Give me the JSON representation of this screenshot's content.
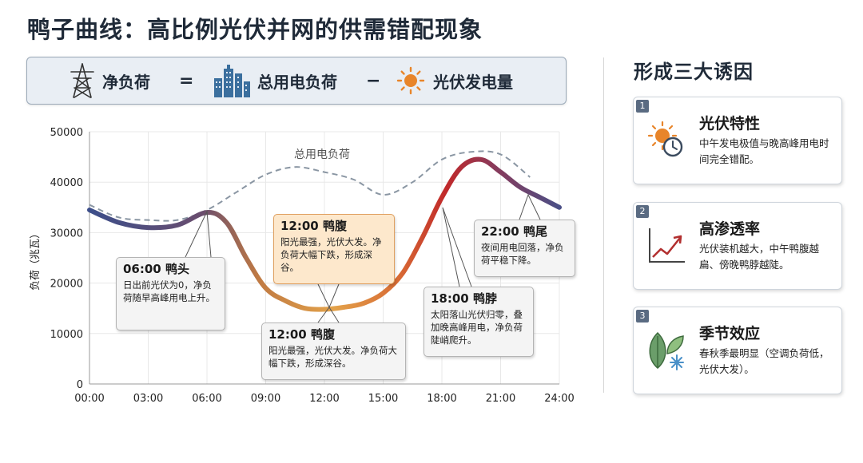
{
  "title": "鸭子曲线：高比例光伏并网的供需错配现象",
  "formula": {
    "net_load": "净负荷",
    "equals": "=",
    "total_load": "总用电负荷",
    "minus": "−",
    "pv_gen": "光伏发电量",
    "icons": [
      "transmission-tower-icon",
      "buildings-icon",
      "sun-icon"
    ]
  },
  "chart_data": {
    "type": "line",
    "ylabel": "负荷（兆瓦）",
    "xlabel": "",
    "x_ticks": [
      "00:00",
      "03:00",
      "06:00",
      "09:00",
      "12:00",
      "15:00",
      "18:00",
      "21:00",
      "24:00"
    ],
    "y_ticks": [
      "0",
      "10000",
      "20000",
      "30000",
      "40000",
      "50000"
    ],
    "ylim": [
      0,
      50000
    ],
    "xlim": [
      0,
      24
    ],
    "series": [
      {
        "name": "总用电负荷",
        "style": "dashed",
        "x": [
          0,
          1.5,
          3,
          4.5,
          6,
          7.5,
          9,
          10.5,
          12,
          13.5,
          15,
          16.5,
          18,
          19.5,
          21,
          22.5
        ],
        "y": [
          35500,
          33000,
          32500,
          32500,
          34500,
          38000,
          41500,
          43000,
          42000,
          40500,
          37500,
          40000,
          44500,
          46000,
          45500,
          41000
        ]
      },
      {
        "name": "",
        "style": "gradient",
        "x": [
          0,
          1.5,
          3,
          4.5,
          6,
          7,
          8,
          9,
          10,
          11,
          12,
          13,
          14,
          15,
          16,
          17,
          18,
          19,
          20,
          21,
          22,
          23,
          24
        ],
        "y": [
          34500,
          32000,
          31000,
          31500,
          34000,
          32000,
          25000,
          19000,
          16500,
          15000,
          14800,
          15200,
          16000,
          18000,
          22000,
          29000,
          37000,
          43000,
          44500,
          42000,
          39000,
          37000,
          35000
        ]
      }
    ],
    "annotations": [
      {
        "title": "06:00 鸭头",
        "desc": "日出前光伏为0，净负荷随早高峰用电上升。"
      },
      {
        "title": "12:00 鸭腹",
        "desc": "阳光最强，光伏大发。净负荷大幅下跌，形成深谷。"
      },
      {
        "title": "12:00 鸭腹",
        "desc": "阳光最强，光伏大发。净负荷大幅下跌，形成深谷。"
      },
      {
        "title": "18:00 鸭脖",
        "desc": "太阳落山光伏归零，叠加晚高峰用电，净负荷陡峭爬升。"
      },
      {
        "title": "22:00 鸭尾",
        "desc": "夜间用电回落，净负荷平稳下降。"
      }
    ],
    "colors": {
      "axis": "#888888",
      "grid": "#e8e8e8",
      "dashed": "#8a96a3",
      "line_start": "#3c4e8a",
      "line_mid": "#d98a3a",
      "line_peak": "#c0282a",
      "line_end": "#5a4f86"
    }
  },
  "right": {
    "title": "形成三大诱因",
    "cards": [
      {
        "num": "1",
        "title": "光伏特性",
        "desc": "中午发电极值与晚高峰用电时间完全错配。",
        "icon": "sun-clock-icon"
      },
      {
        "num": "2",
        "title": "高渗透率",
        "desc": "光伏装机越大，中午鸭腹越扁、傍晚鸭脖越陡。",
        "icon": "rising-chart-icon"
      },
      {
        "num": "3",
        "title": "季节效应",
        "desc": "春秋季最明显（空调负荷低，光伏大发）。",
        "icon": "leaf-snowflake-icon"
      }
    ]
  }
}
